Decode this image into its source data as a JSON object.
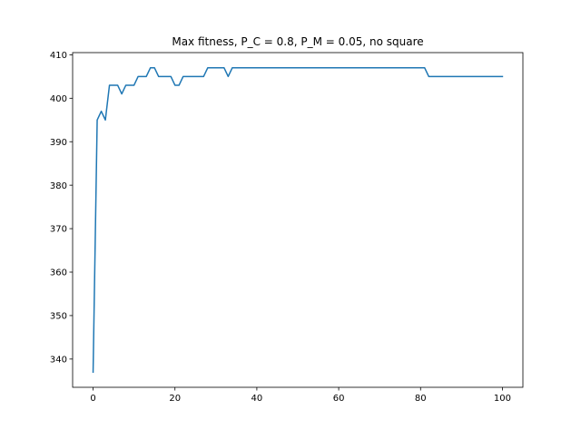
{
  "chart_data": {
    "type": "line",
    "title": "Max fitness, P_C = 0.8, P_M = 0.05, no square",
    "xlabel": "",
    "ylabel": "",
    "xlim": [
      -5,
      105
    ],
    "ylim": [
      333.5,
      410.5
    ],
    "xticks": [
      0,
      20,
      40,
      60,
      80,
      100
    ],
    "yticks": [
      340,
      350,
      360,
      370,
      380,
      390,
      400,
      410
    ],
    "grid": false,
    "legend": "none",
    "series": [
      {
        "color": "#1f77b4",
        "x": [
          0,
          1,
          2,
          3,
          4,
          5,
          6,
          7,
          8,
          9,
          10,
          11,
          12,
          13,
          14,
          15,
          16,
          17,
          18,
          19,
          20,
          21,
          22,
          23,
          24,
          25,
          26,
          27,
          28,
          29,
          30,
          31,
          32,
          33,
          34,
          35,
          36,
          37,
          38,
          39,
          40,
          41,
          42,
          43,
          44,
          45,
          46,
          47,
          48,
          49,
          50,
          51,
          52,
          53,
          54,
          55,
          56,
          57,
          58,
          59,
          60,
          61,
          62,
          63,
          64,
          65,
          66,
          67,
          68,
          69,
          70,
          71,
          72,
          73,
          74,
          75,
          76,
          77,
          78,
          79,
          80,
          81,
          82,
          83,
          84,
          85,
          86,
          87,
          88,
          89,
          90,
          91,
          92,
          93,
          94,
          95,
          96,
          97,
          98,
          99,
          100
        ],
        "values": [
          337,
          395,
          397,
          395,
          403,
          403,
          403,
          401,
          403,
          403,
          403,
          405,
          405,
          405,
          407,
          407,
          405,
          405,
          405,
          405,
          403,
          403,
          405,
          405,
          405,
          405,
          405,
          405,
          407,
          407,
          407,
          407,
          407,
          405,
          407,
          407,
          407,
          407,
          407,
          407,
          407,
          407,
          407,
          407,
          407,
          407,
          407,
          407,
          407,
          407,
          407,
          407,
          407,
          407,
          407,
          407,
          407,
          407,
          407,
          407,
          407,
          407,
          407,
          407,
          407,
          407,
          407,
          407,
          407,
          407,
          407,
          407,
          407,
          407,
          407,
          407,
          407,
          407,
          407,
          407,
          407,
          407,
          405,
          405,
          405,
          405,
          405,
          405,
          405,
          405,
          405,
          405,
          405,
          405,
          405,
          405,
          405,
          405,
          405,
          405,
          405
        ]
      }
    ]
  }
}
